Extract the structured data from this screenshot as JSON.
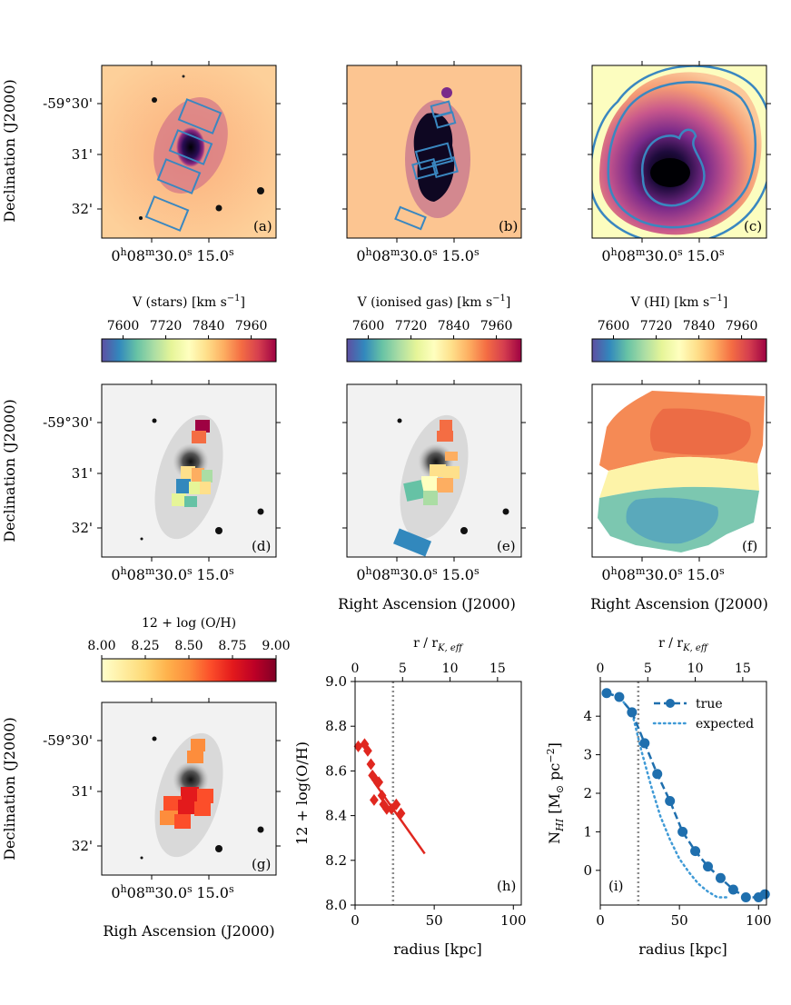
{
  "figure": {
    "ylabel_dec": "Declination (J2000)",
    "xlabel_ra": "Right Ascension (J2000)",
    "xlabel_ra_typo": "Righ Ascension (J2000)",
    "dec_ticks": [
      "-59°30'",
      "31'",
      "32'"
    ],
    "ra_tick_main": "0",
    "ra_tick_h": "h",
    "ra_tick_08": "08",
    "ra_tick_m": "m",
    "ra_tick_30": "30.0",
    "ra_tick_s": "s",
    "ra_tick_15": "15.0",
    "ra_tick_15_s": "s",
    "colors": {
      "rainbow": [
        "#5e4fa2",
        "#3288bd",
        "#66c2a5",
        "#abdda4",
        "#e6f598",
        "#ffffbf",
        "#fee08b",
        "#fdae61",
        "#f46d43",
        "#d53e4f",
        "#9e0142"
      ],
      "oh": [
        "#ffffcc",
        "#ffeda0",
        "#fed976",
        "#feb24c",
        "#fd8d3c",
        "#fc4e2a",
        "#e31a1c",
        "#bd0026",
        "#800026"
      ],
      "magma": [
        "#000004",
        "#3b0f70",
        "#8c2981",
        "#de4968",
        "#fe9f6d",
        "#fcfdbf"
      ],
      "box": "#3a87c0",
      "diamond": "#e0271f",
      "true_line": "#1f6fae",
      "expected_line": "#3f9ad6",
      "vline": "#8c8c8c"
    }
  },
  "panels": {
    "a": {
      "label": "(a)"
    },
    "b": {
      "label": "(b)"
    },
    "c": {
      "label": "(c)"
    },
    "d": {
      "label": "(d)",
      "colorbar_title": "V (stars) [km s",
      "colorbar_sup": "−1",
      "colorbar_end": "]"
    },
    "e": {
      "label": "(e)",
      "colorbar_title": "V (ionised gas) [km s",
      "colorbar_sup": "−1",
      "colorbar_end": "]"
    },
    "f": {
      "label": "(f)",
      "colorbar_title": "V (HI) [km s",
      "colorbar_sup": "−1",
      "colorbar_end": "]"
    },
    "g": {
      "label": "(g)",
      "colorbar_title": "12 + log (O/H)"
    },
    "h": {
      "label": "(h)"
    },
    "i": {
      "label": "(i)"
    }
  },
  "colorbars": {
    "velocity": {
      "ticks": [
        "7600",
        "7720",
        "7840",
        "7960"
      ],
      "range": [
        7540,
        8030
      ]
    },
    "oh": {
      "ticks": [
        "8.00",
        "8.25",
        "8.50",
        "8.75",
        "9.00"
      ],
      "range": [
        8.0,
        9.0
      ]
    }
  },
  "chart_data": [
    {
      "type": "scatter",
      "panel": "h",
      "title": "",
      "xlabel": "radius [kpc]",
      "ylabel": "12 + log(O/H)",
      "top_xlabel_main": "r / r",
      "top_xlabel_sub": "K, eff",
      "xlim": [
        0,
        105
      ],
      "ylim": [
        8.0,
        9.0
      ],
      "x_ticks": [
        "0",
        "50",
        "100"
      ],
      "y_ticks": [
        "8.0",
        "8.2",
        "8.4",
        "8.6",
        "8.8",
        "9.0"
      ],
      "top_ticks": [
        "0",
        "5",
        "10",
        "15"
      ],
      "top_scale_kpc_per_unit": 6,
      "vline_x": 24,
      "points": {
        "x": [
          2,
          6,
          8,
          10,
          11,
          12,
          13,
          15,
          17,
          18,
          20,
          23,
          26,
          29
        ],
        "y": [
          8.71,
          8.72,
          8.69,
          8.63,
          8.58,
          8.47,
          8.56,
          8.55,
          8.49,
          8.45,
          8.43,
          8.43,
          8.45,
          8.41
        ]
      },
      "fit_line": {
        "x": [
          12,
          44
        ],
        "y": [
          8.55,
          8.23
        ]
      }
    },
    {
      "type": "line",
      "panel": "i",
      "title": "",
      "xlabel": "radius [kpc]",
      "ylabel_main": "N",
      "ylabel_sub": "HI",
      "ylabel_rest": " [M",
      "ylabel_sun": "⊙",
      "ylabel_unit": " pc",
      "ylabel_sup": "−2",
      "ylabel_end": "]",
      "top_xlabel_main": "r / r",
      "top_xlabel_sub": "K, eff",
      "xlim": [
        0,
        105
      ],
      "ylim": [
        -0.9,
        4.9
      ],
      "x_ticks": [
        "0",
        "50",
        "100"
      ],
      "y_ticks": [
        "0",
        "1",
        "2",
        "3",
        "4"
      ],
      "top_ticks": [
        "0",
        "5",
        "10",
        "15"
      ],
      "top_scale_kpc_per_unit": 6,
      "vline_x": 24,
      "legend": [
        "true",
        "expected"
      ],
      "legend_position": "top-right",
      "series": [
        {
          "name": "true",
          "x": [
            4,
            12,
            20,
            28,
            36,
            44,
            52,
            60,
            68,
            76,
            84,
            92,
            100,
            104
          ],
          "y": [
            4.6,
            4.5,
            4.1,
            3.3,
            2.5,
            1.8,
            1.0,
            0.5,
            0.1,
            -0.2,
            -0.5,
            -0.7,
            -0.7,
            -0.62
          ]
        },
        {
          "name": "expected",
          "x": [
            4,
            12,
            20,
            26,
            32,
            38,
            44,
            50,
            56,
            62,
            68,
            74,
            80
          ],
          "y": [
            4.6,
            4.5,
            4.1,
            3.1,
            2.2,
            1.4,
            0.8,
            0.3,
            -0.05,
            -0.35,
            -0.55,
            -0.7,
            -0.7
          ]
        }
      ]
    }
  ]
}
